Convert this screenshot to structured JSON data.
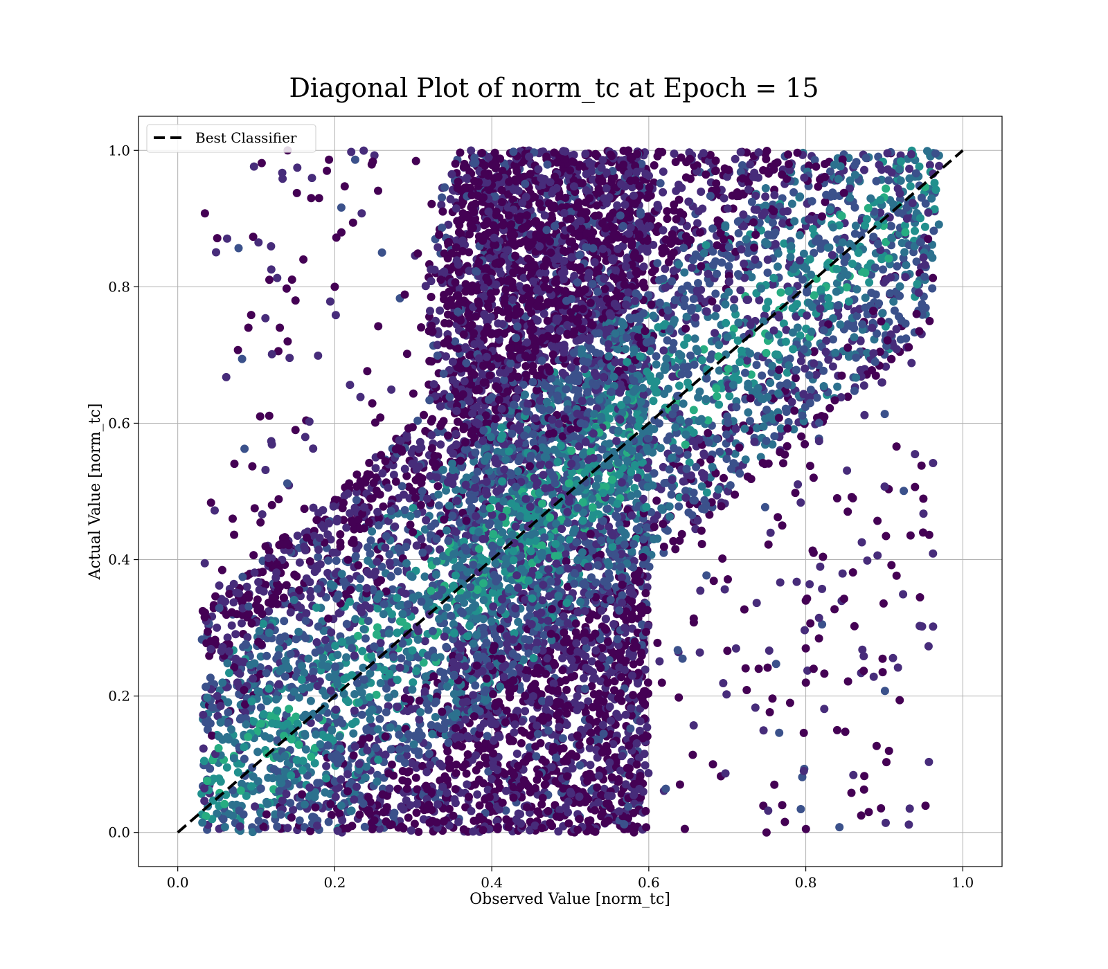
{
  "chart_data": {
    "type": "scatter",
    "title": "Diagonal Plot of norm_tc at Epoch = 15",
    "xlabel": "Observed Value [norm_tc]",
    "ylabel": "Actual Value [norm_tc]",
    "xlim": [
      -0.05,
      1.05
    ],
    "ylim": [
      -0.05,
      1.05
    ],
    "xticks": [
      "0.0",
      "0.2",
      "0.4",
      "0.6",
      "0.8",
      "1.0"
    ],
    "yticks": [
      "0.0",
      "0.2",
      "0.4",
      "0.6",
      "0.8",
      "1.0"
    ],
    "xtick_values": [
      0.0,
      0.2,
      0.4,
      0.6,
      0.8,
      1.0
    ],
    "ytick_values": [
      0.0,
      0.2,
      0.4,
      0.6,
      0.8,
      1.0
    ],
    "grid": true,
    "legend": {
      "placement": "upper-left",
      "entries": [
        {
          "label": "Best Classifier",
          "style": "dashed",
          "color": "#000000"
        }
      ]
    },
    "reference_line": {
      "name": "Best Classifier",
      "x": [
        0.0,
        1.0
      ],
      "y": [
        0.0,
        1.0
      ],
      "color": "#000000",
      "style": "dashed"
    },
    "scatter_colormap": "viridis",
    "scatter_colors": [
      "#440154",
      "#472c7a",
      "#3b518b",
      "#2c718e",
      "#21908d",
      "#27ad81",
      "#5cc863"
    ],
    "scatter_regions": [
      {
        "x": [
          0.03,
          0.6
        ],
        "y": [
          0.0,
          1.0
        ],
        "band_below": 0.3,
        "band_above": 0.45,
        "density": "high"
      },
      {
        "x": [
          0.35,
          0.97
        ],
        "y": [
          0.0,
          1.0
        ],
        "band_below": 0.4,
        "band_above": 0.3,
        "density": "high"
      },
      {
        "x": [
          0.08,
          0.35
        ],
        "y": [
          0.35,
          1.0
        ],
        "density": "sparse"
      },
      {
        "x": [
          0.6,
          0.86
        ],
        "y": [
          0.0,
          0.55
        ],
        "density": "sparse"
      }
    ],
    "outliers": [
      [
        0.14,
        1.0
      ],
      [
        0.07,
        0.46
      ],
      [
        0.09,
        0.74
      ],
      [
        0.13,
        0.74
      ],
      [
        0.105,
        0.61
      ],
      [
        0.12,
        0.48
      ],
      [
        0.14,
        0.72
      ],
      [
        0.15,
        0.78
      ],
      [
        0.17,
        0.93
      ],
      [
        0.18,
        0.93
      ],
      [
        0.19,
        0.97
      ],
      [
        0.16,
        0.84
      ],
      [
        0.2,
        0.8
      ],
      [
        0.13,
        0.36
      ],
      [
        0.15,
        0.59
      ],
      [
        0.75,
        0.0
      ],
      [
        0.77,
        0.04
      ],
      [
        0.84,
        0.15
      ],
      [
        0.81,
        0.24
      ],
      [
        0.8,
        0.27
      ],
      [
        0.8,
        0.34
      ],
      [
        0.81,
        0.41
      ],
      [
        0.84,
        0.49
      ],
      [
        0.86,
        0.49
      ],
      [
        0.81,
        0.52
      ],
      [
        0.78,
        0.19
      ],
      [
        0.76,
        0.07
      ],
      [
        0.77,
        0.45
      ],
      [
        0.74,
        0.24
      ]
    ],
    "marker_size_px": 10
  }
}
